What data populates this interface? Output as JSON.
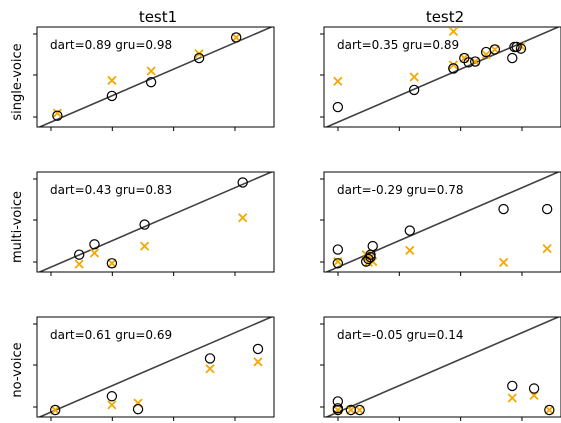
{
  "chart_data": {
    "type": "scatter",
    "columns": [
      "test1",
      "test2"
    ],
    "rows": [
      "single-voice",
      "multi-voice",
      "no-voice"
    ],
    "colors": {
      "dart": "#f5a800",
      "gru": "#000000",
      "diagonal": "#404040"
    },
    "panels": [
      {
        "id": "single-test1",
        "row": 0,
        "col": 0,
        "annotation": "dart=0.89 gru=0.98",
        "xlim": [
          0,
          100
        ],
        "ylim": [
          0,
          100
        ],
        "gru": [
          [
            5,
            5
          ],
          [
            30,
            28
          ],
          [
            48,
            44
          ],
          [
            70,
            72
          ],
          [
            87,
            96
          ]
        ],
        "dart": [
          [
            5,
            8
          ],
          [
            30,
            46
          ],
          [
            48,
            57
          ],
          [
            70,
            77
          ],
          [
            87,
            96
          ]
        ]
      },
      {
        "id": "single-test2",
        "row": 0,
        "col": 1,
        "annotation": "dart=0.35 gru=0.89",
        "xlim": [
          0,
          100
        ],
        "ylim": [
          0,
          100
        ],
        "gru": [
          [
            2,
            15
          ],
          [
            37,
            35
          ],
          [
            55,
            60
          ],
          [
            55,
            60
          ],
          [
            60,
            72
          ],
          [
            62,
            67
          ],
          [
            65,
            68
          ],
          [
            70,
            79
          ],
          [
            74,
            82
          ],
          [
            82,
            72
          ],
          [
            83,
            85
          ],
          [
            84,
            85
          ],
          [
            86,
            83
          ]
        ],
        "dart": [
          [
            2,
            45
          ],
          [
            37,
            50
          ],
          [
            55,
            64
          ],
          [
            60,
            72
          ],
          [
            65,
            68
          ],
          [
            70,
            76
          ],
          [
            74,
            82
          ],
          [
            86,
            86
          ],
          [
            55,
            103
          ]
        ]
      },
      {
        "id": "multi-test1",
        "row": 1,
        "col": 0,
        "annotation": "dart=0.43 gru=0.83",
        "xlim": [
          0,
          100
        ],
        "ylim": [
          0,
          100
        ],
        "gru": [
          [
            15,
            12
          ],
          [
            22,
            24
          ],
          [
            30,
            2
          ],
          [
            45,
            47
          ],
          [
            90,
            96
          ]
        ],
        "dart": [
          [
            15,
            1
          ],
          [
            22,
            14
          ],
          [
            30,
            2
          ],
          [
            45,
            22
          ],
          [
            90,
            55
          ]
        ]
      },
      {
        "id": "multi-test2",
        "row": 1,
        "col": 1,
        "annotation": "dart=-0.29 gru=0.78",
        "xlim": [
          0,
          100
        ],
        "ylim": [
          0,
          100
        ],
        "gru": [
          [
            2,
            18
          ],
          [
            2,
            2
          ],
          [
            15,
            4
          ],
          [
            16,
            7
          ],
          [
            17,
            9
          ],
          [
            17,
            12
          ],
          [
            18,
            22
          ],
          [
            35,
            40
          ],
          [
            78,
            65
          ],
          [
            98,
            65
          ]
        ],
        "dart": [
          [
            2,
            4
          ],
          [
            15,
            12
          ],
          [
            16,
            3
          ],
          [
            17,
            9
          ],
          [
            18,
            4
          ],
          [
            35,
            17
          ],
          [
            78,
            3
          ],
          [
            98,
            19
          ]
        ]
      },
      {
        "id": "none-test1",
        "row": 2,
        "col": 0,
        "annotation": "dart=0.61 gru=0.69",
        "xlim": [
          0,
          100
        ],
        "ylim": [
          0,
          100
        ],
        "gru": [
          [
            4,
            0
          ],
          [
            30,
            16
          ],
          [
            42,
            1
          ],
          [
            75,
            60
          ],
          [
            97,
            71
          ]
        ],
        "dart": [
          [
            4,
            0
          ],
          [
            30,
            6
          ],
          [
            42,
            8
          ],
          [
            75,
            48
          ],
          [
            97,
            56
          ]
        ]
      },
      {
        "id": "none-test2",
        "row": 2,
        "col": 1,
        "annotation": "dart=-0.05 gru=0.14",
        "xlim": [
          0,
          100
        ],
        "ylim": [
          0,
          100
        ],
        "gru": [
          [
            2,
            10
          ],
          [
            2,
            2
          ],
          [
            2,
            0
          ],
          [
            8,
            0
          ],
          [
            12,
            0
          ],
          [
            82,
            28
          ],
          [
            92,
            25
          ],
          [
            99,
            0
          ]
        ],
        "dart": [
          [
            2,
            0
          ],
          [
            8,
            0
          ],
          [
            12,
            0
          ],
          [
            82,
            14
          ],
          [
            92,
            17
          ],
          [
            99,
            0
          ]
        ]
      }
    ]
  }
}
